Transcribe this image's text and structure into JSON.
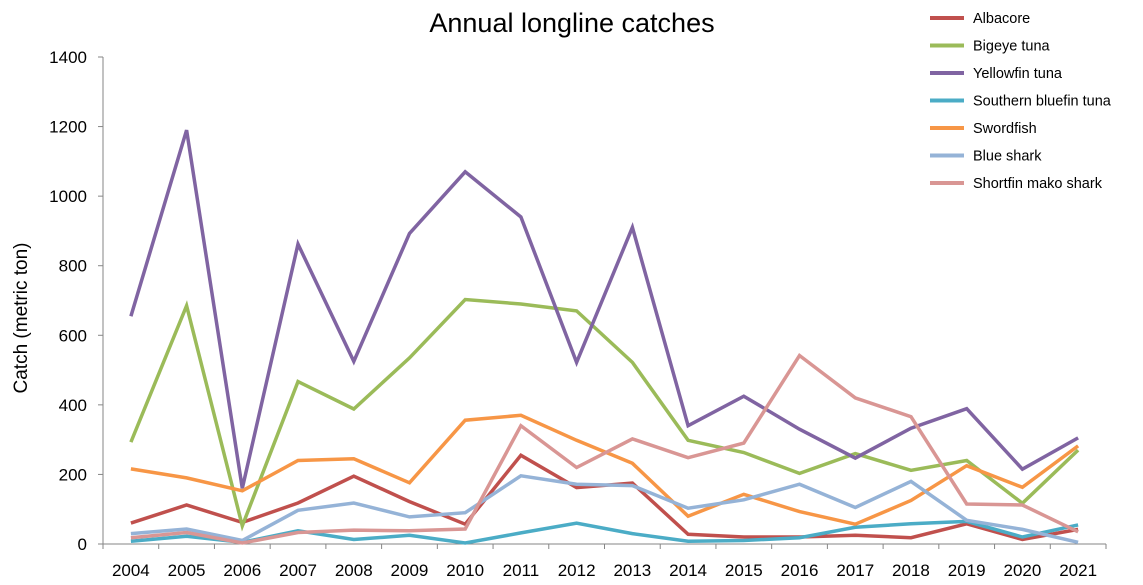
{
  "chart_data": {
    "type": "line",
    "title": "Annual longline catches",
    "xlabel": "",
    "ylabel": "Catch (metric ton)",
    "ylim": [
      0,
      1400
    ],
    "yticks": [
      0,
      200,
      400,
      600,
      800,
      1000,
      1200,
      1400
    ],
    "grid": false,
    "legend_position": "top-right",
    "x": [
      "2004",
      "2005",
      "2006",
      "2007",
      "2008",
      "2009",
      "2010",
      "2011",
      "2012",
      "2013",
      "2014",
      "2015",
      "2016",
      "2017",
      "2018",
      "2019",
      "2020",
      "2021"
    ],
    "series": [
      {
        "name": "Albacore",
        "color": "#c0504d",
        "values": [
          60,
          112,
          62,
          118,
          195,
          122,
          57,
          255,
          162,
          175,
          28,
          20,
          20,
          25,
          18,
          58,
          13,
          42
        ]
      },
      {
        "name": "Bigeye tuna",
        "color": "#9bbb59",
        "values": [
          293,
          685,
          52,
          467,
          388,
          535,
          703,
          690,
          670,
          522,
          298,
          263,
          203,
          260,
          212,
          240,
          117,
          270
        ]
      },
      {
        "name": "Yellowfin tuna",
        "color": "#8064a2",
        "values": [
          655,
          1190,
          160,
          862,
          525,
          893,
          1070,
          940,
          522,
          910,
          340,
          425,
          330,
          247,
          333,
          389,
          215,
          305
        ]
      },
      {
        "name": "Southern bluefin tuna",
        "color": "#4bacc6",
        "values": [
          8,
          22,
          5,
          38,
          13,
          25,
          3,
          32,
          60,
          30,
          8,
          10,
          18,
          48,
          58,
          65,
          20,
          55
        ]
      },
      {
        "name": "Swordfish",
        "color": "#f79646",
        "values": [
          216,
          190,
          153,
          240,
          245,
          176,
          356,
          370,
          298,
          232,
          80,
          143,
          93,
          57,
          125,
          225,
          163,
          282
        ]
      },
      {
        "name": "Blue shark",
        "color": "#95b3d7",
        "values": [
          30,
          43,
          10,
          97,
          118,
          78,
          90,
          196,
          172,
          168,
          103,
          127,
          172,
          105,
          180,
          68,
          42,
          5
        ]
      },
      {
        "name": "Shortfin mako shark",
        "color": "#d99694",
        "values": [
          18,
          33,
          3,
          33,
          40,
          38,
          43,
          340,
          220,
          302,
          248,
          290,
          542,
          420,
          366,
          115,
          112,
          35
        ]
      }
    ]
  }
}
